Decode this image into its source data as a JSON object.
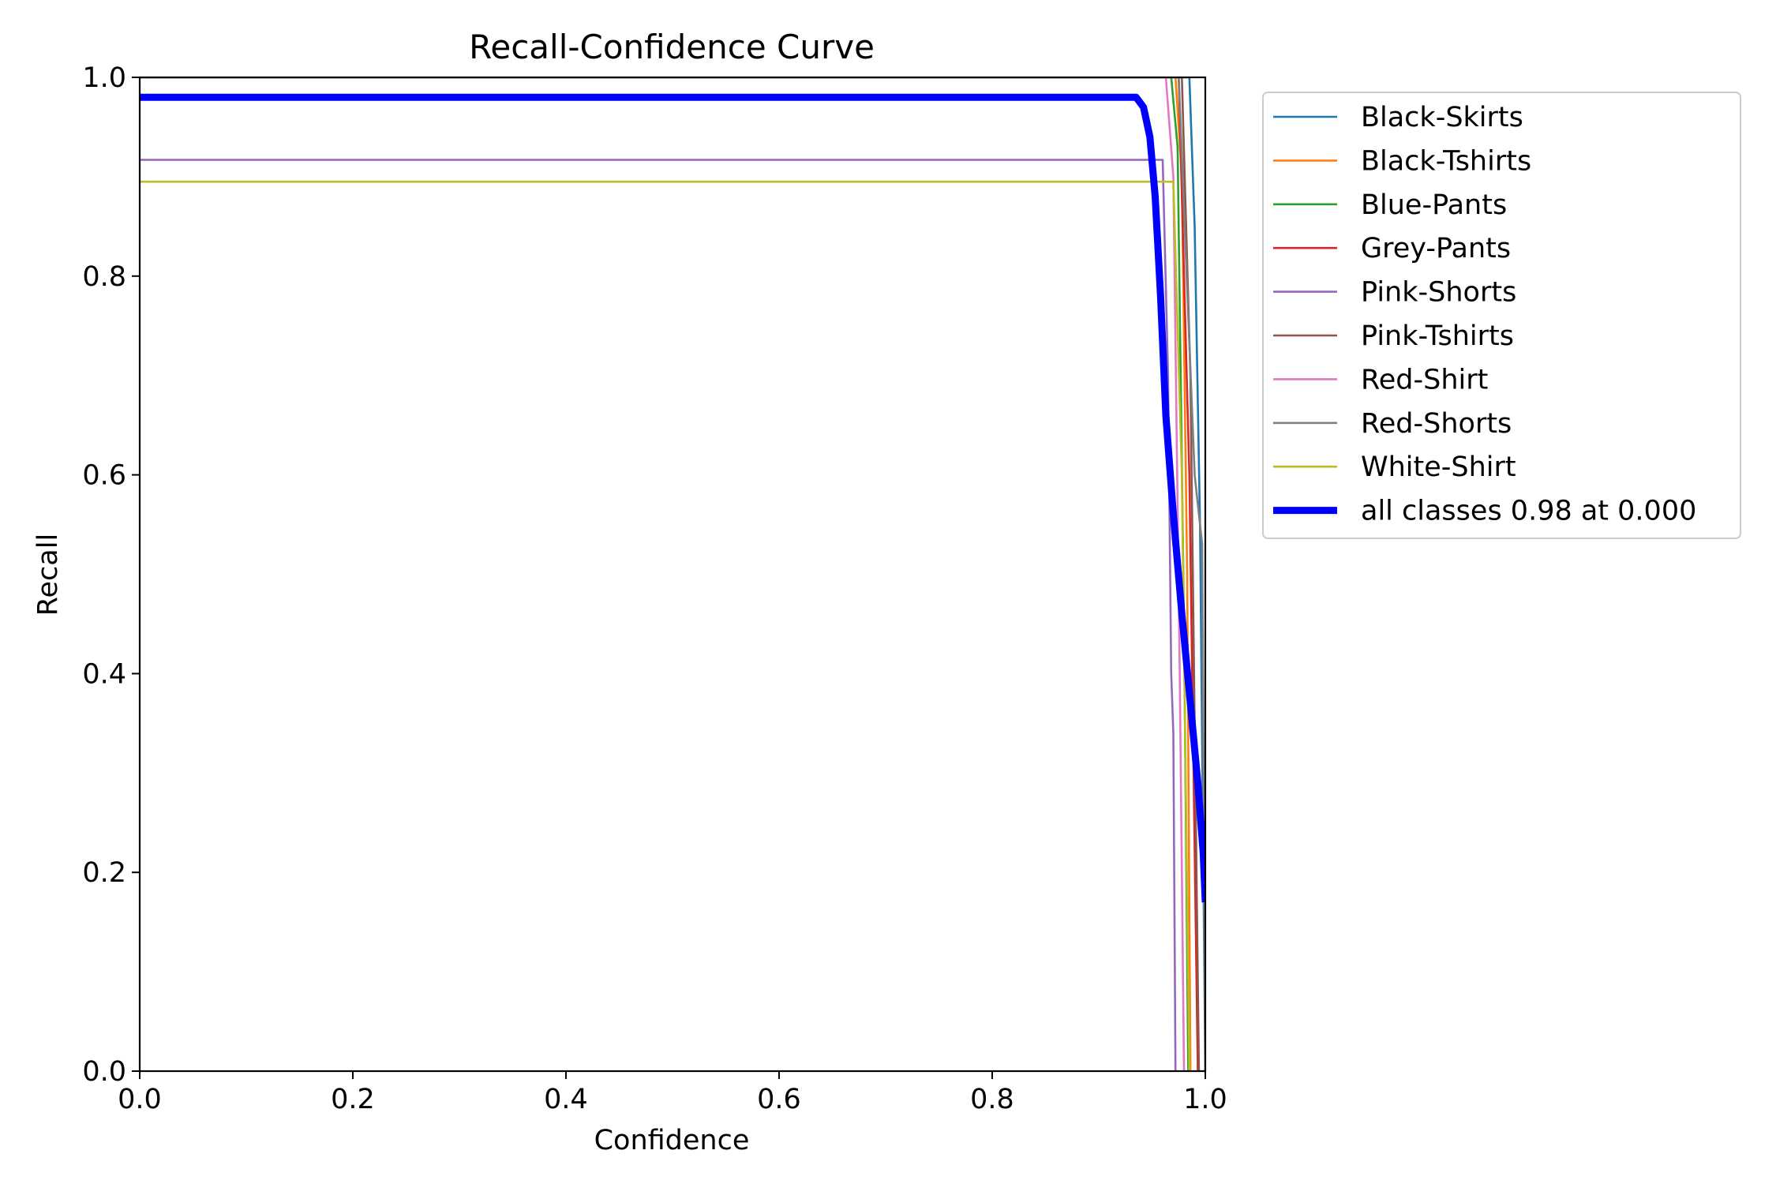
{
  "chart_data": {
    "type": "line",
    "title": "Recall-Confidence Curve",
    "xlabel": "Confidence",
    "ylabel": "Recall",
    "xlim": [
      0,
      1
    ],
    "ylim": [
      0,
      1
    ],
    "xticks": [
      "0.0",
      "0.2",
      "0.4",
      "0.6",
      "0.8",
      "1.0"
    ],
    "yticks": [
      "0.0",
      "0.2",
      "0.4",
      "0.6",
      "0.8",
      "1.0"
    ],
    "grid": false,
    "legend_position": "outside upper right",
    "series": [
      {
        "name": "Black-Skirts",
        "color": "#1f77b4",
        "width": "thin",
        "points": [
          [
            0,
            1.0
          ],
          [
            0.985,
            1.0
          ],
          [
            0.99,
            0.85
          ],
          [
            0.995,
            0.55
          ],
          [
            1.0,
            0.0
          ]
        ]
      },
      {
        "name": "Black-Tshirts",
        "color": "#ff7f0e",
        "width": "thin",
        "points": [
          [
            0,
            1.0
          ],
          [
            0.972,
            1.0
          ],
          [
            0.978,
            0.9
          ],
          [
            0.983,
            0.5
          ],
          [
            0.986,
            0.0
          ]
        ]
      },
      {
        "name": "Blue-Pants",
        "color": "#2ca02c",
        "width": "thin",
        "points": [
          [
            0,
            1.0
          ],
          [
            0.968,
            1.0
          ],
          [
            0.974,
            0.93
          ],
          [
            0.98,
            0.45
          ],
          [
            0.984,
            0.0
          ]
        ]
      },
      {
        "name": "Grey-Pants",
        "color": "#d62728",
        "width": "thin",
        "points": [
          [
            0,
            1.0
          ],
          [
            0.975,
            1.0
          ],
          [
            0.985,
            0.6
          ],
          [
            0.993,
            0.0
          ]
        ]
      },
      {
        "name": "Pink-Shorts",
        "color": "#9467bd",
        "width": "thin",
        "points": [
          [
            0,
            0.917
          ],
          [
            0.96,
            0.917
          ],
          [
            0.965,
            0.7
          ],
          [
            0.968,
            0.4
          ],
          [
            0.97,
            0.34
          ],
          [
            0.972,
            0.0
          ]
        ]
      },
      {
        "name": "Pink-Tshirts",
        "color": "#8c564b",
        "width": "thin",
        "points": [
          [
            0,
            1.0
          ],
          [
            0.978,
            1.0
          ],
          [
            0.986,
            0.7
          ],
          [
            0.994,
            0.0
          ]
        ]
      },
      {
        "name": "Red-Shirt",
        "color": "#e377c2",
        "width": "thin",
        "points": [
          [
            0,
            1.0
          ],
          [
            0.963,
            1.0
          ],
          [
            0.97,
            0.9
          ],
          [
            0.976,
            0.4
          ],
          [
            0.98,
            0.0
          ]
        ]
      },
      {
        "name": "Red-Shorts",
        "color": "#7f7f7f",
        "width": "thin",
        "points": [
          [
            0,
            1.0
          ],
          [
            0.975,
            1.0
          ],
          [
            0.99,
            0.6
          ],
          [
            0.997,
            0.53
          ],
          [
            1.0,
            0.0
          ]
        ]
      },
      {
        "name": "White-Shirt",
        "color": "#bcbd22",
        "width": "thin",
        "points": [
          [
            0,
            0.895
          ],
          [
            0.97,
            0.895
          ],
          [
            0.978,
            0.6
          ],
          [
            0.985,
            0.0
          ]
        ]
      },
      {
        "name": "all classes 0.98 at 0.000",
        "color": "#0000ff",
        "width": "thick",
        "points": [
          [
            0,
            0.98
          ],
          [
            0.935,
            0.98
          ],
          [
            0.942,
            0.97
          ],
          [
            0.948,
            0.94
          ],
          [
            0.953,
            0.88
          ],
          [
            0.958,
            0.78
          ],
          [
            0.963,
            0.66
          ],
          [
            0.97,
            0.56
          ],
          [
            0.978,
            0.46
          ],
          [
            0.986,
            0.37
          ],
          [
            0.993,
            0.29
          ],
          [
            0.998,
            0.22
          ],
          [
            1.0,
            0.17
          ]
        ]
      }
    ]
  }
}
